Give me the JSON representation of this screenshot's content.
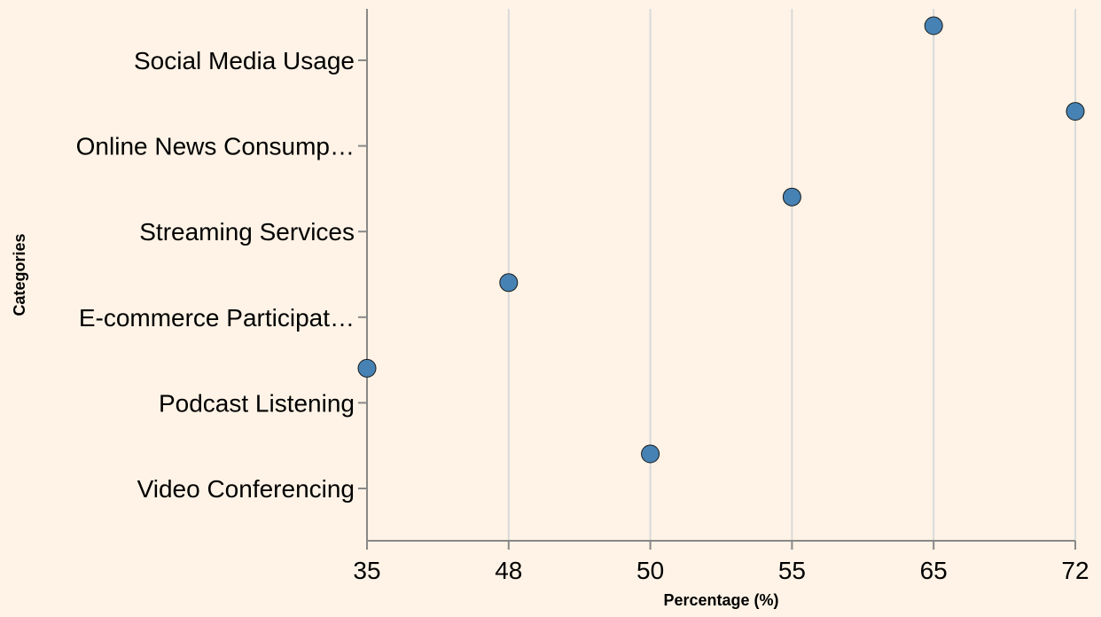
{
  "chart_data": {
    "type": "scatter",
    "title": "",
    "xlabel": "Percentage (%)",
    "ylabel": "Categories",
    "x_axis_type": "ordinal",
    "x_ticks": [
      "35",
      "48",
      "50",
      "55",
      "65",
      "72"
    ],
    "categories": [
      "Social Media Usage",
      "Online News Consump…",
      "Streaming Services",
      "E-commerce Participat…",
      "Podcast Listening",
      "Video Conferencing"
    ],
    "values": [
      65,
      72,
      55,
      48,
      35,
      50
    ],
    "grid": true,
    "legend": "none",
    "colors": {
      "background": "#fef3e6",
      "point_fill": "#4682b4",
      "point_stroke": "#1a1a1a",
      "grid": "#d9d9d9",
      "axis": "#888888"
    }
  }
}
